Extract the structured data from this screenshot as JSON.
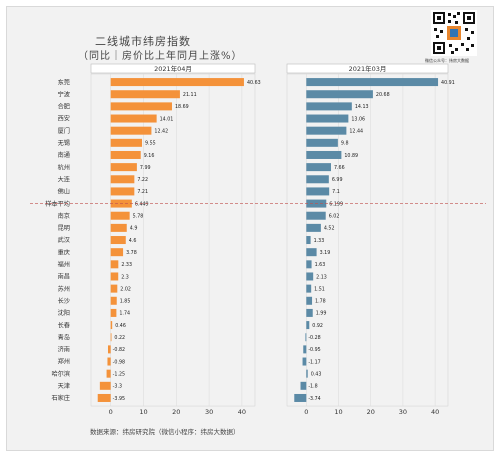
{
  "header": {
    "title": "二线城市纬房指数",
    "subtitle": "（同比｜房价比上年同月上涨%）"
  },
  "qr": {
    "caption": "微信公众号：纬房大数据"
  },
  "source": "数据来源：纬房研究院（微信小程序：纬房大数据）",
  "chart_data": [
    {
      "type": "bar",
      "orientation": "horizontal",
      "title": "2021年04月",
      "color": "#f4923a",
      "categories": [
        "东莞",
        "宁波",
        "合肥",
        "西安",
        "厦门",
        "无锡",
        "南通",
        "杭州",
        "大连",
        "佛山",
        "样本平均",
        "南京",
        "昆明",
        "武汉",
        "重庆",
        "福州",
        "南昌",
        "苏州",
        "长沙",
        "沈阳",
        "长春",
        "青岛",
        "济南",
        "郑州",
        "哈尔滨",
        "天津",
        "石家庄"
      ],
      "values": [
        40.63,
        21.11,
        18.69,
        14.01,
        12.42,
        9.55,
        9.16,
        7.99,
        7.22,
        7.21,
        6.449,
        5.78,
        4.9,
        4.6,
        3.78,
        2.33,
        2.3,
        2.02,
        1.85,
        1.74,
        0.46,
        0.22,
        -0.82,
        -0.98,
        -1.25,
        -3.3,
        -3.95
      ],
      "value_labels": [
        "40.63",
        "21.11",
        "18.69",
        "14.01",
        "12.42",
        "9.55",
        "9.16",
        "7.99",
        "7.22",
        "7.21",
        "6.449",
        "5.78",
        "4.9",
        "4.6",
        "3.78",
        "2.33",
        "2.3",
        "2.02",
        "1.85",
        "1.74",
        "0.46",
        "0.22",
        "-0.82",
        "-0.98",
        "-1.25",
        "-3.3",
        "-3.95"
      ],
      "xticks": [
        "0",
        "10",
        "20",
        "30",
        "40"
      ],
      "xlim": [
        -6,
        44
      ],
      "reference_line": "样本平均"
    },
    {
      "type": "bar",
      "orientation": "horizontal",
      "title": "2021年03月",
      "color": "#5b8aa6",
      "categories": [
        "东莞",
        "宁波",
        "合肥",
        "西安",
        "厦门",
        "无锡",
        "南通",
        "杭州",
        "大连",
        "佛山",
        "样本平均",
        "南京",
        "昆明",
        "武汉",
        "重庆",
        "福州",
        "南昌",
        "苏州",
        "长沙",
        "沈阳",
        "长春",
        "青岛",
        "济南",
        "郑州",
        "哈尔滨",
        "天津",
        "石家庄"
      ],
      "values": [
        40.91,
        20.68,
        14.13,
        13.06,
        12.44,
        9.8,
        10.89,
        7.66,
        6.99,
        7.1,
        6.199,
        6.02,
        4.52,
        1.33,
        3.19,
        1.63,
        2.13,
        1.51,
        1.78,
        1.99,
        0.92,
        -0.28,
        -0.95,
        -1.17,
        0.43,
        -1.8,
        -3.74
      ],
      "value_labels": [
        "40.91",
        "20.68",
        "14.13",
        "13.06",
        "12.44",
        "9.8",
        "10.89",
        "7.66",
        "6.99",
        "7.1",
        "6.199",
        "6.02",
        "4.52",
        "1.33",
        "3.19",
        "1.63",
        "2.13",
        "1.51",
        "1.78",
        "1.99",
        "0.92",
        "-0.28",
        "-0.95",
        "-1.17",
        "0.43",
        "-1.8",
        "-3.74"
      ],
      "xticks": [
        "0",
        "10",
        "20",
        "30",
        "40"
      ],
      "xlim": [
        -6,
        44
      ],
      "reference_line": "样本平均"
    }
  ]
}
